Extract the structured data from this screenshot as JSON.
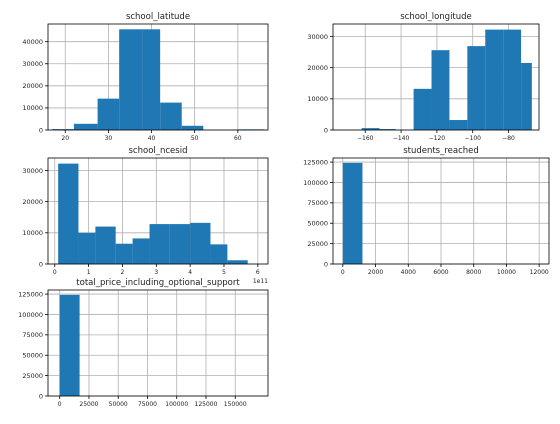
{
  "chart_data": [
    {
      "type": "bar",
      "title": "school_latitude",
      "xlim": [
        16,
        67
      ],
      "ylim": [
        0,
        48000
      ],
      "xticks": [
        20,
        30,
        40,
        50,
        60
      ],
      "yticks": [
        0,
        10000,
        20000,
        30000,
        40000
      ],
      "bins": [
        {
          "x0": 17,
          "x1": 22,
          "value": 400
        },
        {
          "x0": 22,
          "x1": 27.5,
          "value": 2800
        },
        {
          "x0": 27.5,
          "x1": 32.5,
          "value": 14200
        },
        {
          "x0": 32.5,
          "x1": 38,
          "value": 45600
        },
        {
          "x0": 38,
          "x1": 42,
          "value": 45600
        },
        {
          "x0": 42,
          "x1": 47,
          "value": 12400
        },
        {
          "x0": 47,
          "x1": 52,
          "value": 1900
        },
        {
          "x0": 52,
          "x1": 60,
          "value": 0
        },
        {
          "x0": 60,
          "x1": 66,
          "value": 300
        }
      ]
    },
    {
      "type": "bar",
      "title": "school_longitude",
      "xlim": [
        -178,
        -63
      ],
      "ylim": [
        0,
        34000
      ],
      "xticks": [
        -160,
        -140,
        -120,
        -100,
        -80
      ],
      "yticks": [
        0,
        10000,
        20000,
        30000
      ],
      "bins": [
        {
          "x0": -172,
          "x1": -162,
          "value": 0
        },
        {
          "x0": -162,
          "x1": -152,
          "value": 600
        },
        {
          "x0": -152,
          "x1": -143,
          "value": 300
        },
        {
          "x0": -143,
          "x1": -133,
          "value": 0
        },
        {
          "x0": -133,
          "x1": -123,
          "value": 13200
        },
        {
          "x0": -123,
          "x1": -113,
          "value": 25600
        },
        {
          "x0": -113,
          "x1": -103,
          "value": 3200
        },
        {
          "x0": -103,
          "x1": -93,
          "value": 26900
        },
        {
          "x0": -93,
          "x1": -83,
          "value": 32200
        },
        {
          "x0": -83,
          "x1": -73,
          "value": 32200
        },
        {
          "x0": -73,
          "x1": -67,
          "value": 21500
        }
      ]
    },
    {
      "type": "bar",
      "title": "school_ncesid",
      "offset_label": "1e11",
      "xlim": [
        -0.2,
        6.3
      ],
      "ylim": [
        0,
        34000
      ],
      "xticks": [
        0,
        1,
        2,
        3,
        4,
        5,
        6
      ],
      "yticks": [
        0,
        10000,
        20000,
        30000
      ],
      "bins": [
        {
          "x0": 0.1,
          "x1": 0.7,
          "value": 32200
        },
        {
          "x0": 0.7,
          "x1": 1.2,
          "value": 10000
        },
        {
          "x0": 1.2,
          "x1": 1.8,
          "value": 12000
        },
        {
          "x0": 1.8,
          "x1": 2.3,
          "value": 6500
        },
        {
          "x0": 2.3,
          "x1": 2.8,
          "value": 8200
        },
        {
          "x0": 2.8,
          "x1": 3.4,
          "value": 12800
        },
        {
          "x0": 3.4,
          "x1": 4.0,
          "value": 12800
        },
        {
          "x0": 4.0,
          "x1": 4.6,
          "value": 13200
        },
        {
          "x0": 4.6,
          "x1": 5.1,
          "value": 6300
        },
        {
          "x0": 5.1,
          "x1": 5.7,
          "value": 1200
        }
      ]
    },
    {
      "type": "bar",
      "title": "students_reached",
      "xlim": [
        -600,
        12600
      ],
      "ylim": [
        0,
        130000
      ],
      "xticks": [
        0,
        2000,
        4000,
        6000,
        8000,
        10000,
        12000
      ],
      "yticks": [
        0,
        25000,
        50000,
        75000,
        100000,
        125000
      ],
      "bins": [
        {
          "x0": 0,
          "x1": 1200,
          "value": 124000
        }
      ]
    },
    {
      "type": "bar",
      "title": "total_price_including_optional_support",
      "xlim": [
        -10000,
        178000
      ],
      "ylim": [
        0,
        130000
      ],
      "xticks": [
        0,
        25000,
        50000,
        75000,
        100000,
        125000,
        150000
      ],
      "yticks": [
        0,
        25000,
        50000,
        75000,
        100000,
        125000
      ],
      "bins": [
        {
          "x0": 0,
          "x1": 17000,
          "value": 124000
        }
      ]
    }
  ],
  "colors": {
    "bar": "#1f77b4",
    "grid": "#b0b0b0",
    "axis": "#000000"
  }
}
